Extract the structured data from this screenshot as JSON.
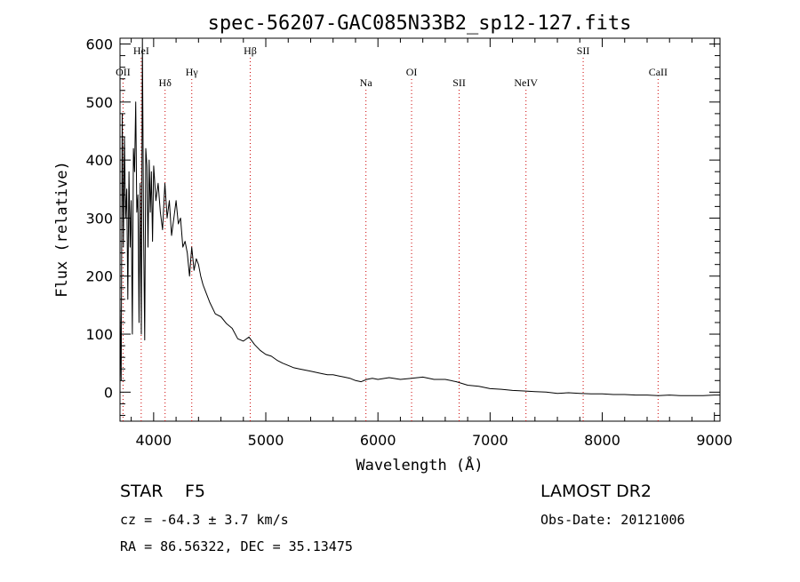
{
  "chart_data": {
    "type": "line",
    "title": "spec-56207-GAC085N33B2_sp12-127.fits",
    "xlabel": "Wavelength (Å)",
    "ylabel": "Flux (relative)",
    "xlim": [
      3700,
      9050
    ],
    "ylim": [
      -50,
      610
    ],
    "x_ticks": [
      4000,
      5000,
      6000,
      7000,
      8000,
      9000
    ],
    "y_ticks": [
      0,
      100,
      200,
      300,
      400,
      500,
      600
    ],
    "x_tick_labels": [
      "4000",
      "5000",
      "6000",
      "7000",
      "8000",
      "9000"
    ],
    "y_tick_labels": [
      "0",
      "100",
      "200",
      "300",
      "400",
      "500",
      "600"
    ],
    "grid": false,
    "series": [
      {
        "x": [
          3700,
          3710,
          3720,
          3730,
          3740,
          3750,
          3760,
          3770,
          3780,
          3790,
          3800,
          3810,
          3820,
          3830,
          3840,
          3850,
          3860,
          3870,
          3880,
          3890,
          3900,
          3910,
          3920,
          3930,
          3940,
          3950,
          3960,
          3970,
          3980,
          3990,
          4000,
          4020,
          4040,
          4060,
          4080,
          4100,
          4120,
          4140,
          4160,
          4180,
          4200,
          4220,
          4240,
          4260,
          4280,
          4300,
          4320,
          4340,
          4360,
          4380,
          4400,
          4420,
          4440,
          4460,
          4480,
          4500,
          4550,
          4600,
          4650,
          4700,
          4750,
          4800,
          4850,
          4900,
          4950,
          5000,
          5050,
          5100,
          5150,
          5200,
          5250,
          5300,
          5350,
          5400,
          5450,
          5500,
          5550,
          5600,
          5650,
          5700,
          5750,
          5800,
          5850,
          5900,
          5950,
          6000,
          6100,
          6200,
          6300,
          6400,
          6500,
          6600,
          6700,
          6800,
          6900,
          7000,
          7100,
          7200,
          7300,
          7400,
          7500,
          7600,
          7700,
          7800,
          7900,
          8000,
          8100,
          8200,
          8300,
          8400,
          8500,
          8600,
          8700,
          8800,
          8900,
          9000,
          9050
        ],
        "y": [
          150,
          20,
          480,
          250,
          440,
          300,
          350,
          160,
          380,
          250,
          330,
          100,
          420,
          380,
          500,
          310,
          340,
          120,
          360,
          100,
          610,
          280,
          90,
          420,
          390,
          250,
          400,
          310,
          380,
          260,
          390,
          330,
          360,
          310,
          280,
          360,
          300,
          330,
          270,
          300,
          330,
          290,
          300,
          250,
          260,
          240,
          200,
          250,
          210,
          230,
          220,
          200,
          185,
          175,
          165,
          155,
          135,
          130,
          118,
          110,
          92,
          88,
          95,
          82,
          72,
          65,
          62,
          55,
          50,
          46,
          42,
          40,
          38,
          36,
          34,
          32,
          30,
          30,
          28,
          26,
          24,
          20,
          18,
          22,
          24,
          22,
          25,
          22,
          24,
          26,
          22,
          22,
          18,
          12,
          10,
          6,
          5,
          3,
          2,
          1,
          0,
          -2,
          -1,
          -2,
          -3,
          -3,
          -4,
          -4,
          -5,
          -5,
          -6,
          -5,
          -6,
          -6,
          -6,
          -5,
          -5
        ]
      }
    ],
    "line_markers": [
      {
        "label": "OII",
        "x": 3727,
        "tier": 3
      },
      {
        "label": "HeI",
        "x": 3889,
        "tier": 1
      },
      {
        "label": "Hδ",
        "x": 4102,
        "tier": 4
      },
      {
        "label": "Hγ",
        "x": 4340,
        "tier": 3
      },
      {
        "label": "Hβ",
        "x": 4861,
        "tier": 1
      },
      {
        "label": "Na",
        "x": 5893,
        "tier": 4
      },
      {
        "label": "OI",
        "x": 6300,
        "tier": 3
      },
      {
        "label": "SII",
        "x": 6724,
        "tier": 4
      },
      {
        "label": "NeIV",
        "x": 7320,
        "tier": 4
      },
      {
        "label": "SII",
        "x": 7830,
        "tier": 1
      },
      {
        "label": "CaII",
        "x": 8498,
        "tier": 3
      }
    ],
    "marker_color": "#cc0000"
  },
  "info": {
    "object_class": "STAR",
    "subclass": "F5",
    "survey": "LAMOST DR2",
    "cz": "cz = -64.3 ± 3.7 km/s",
    "obs_date": "Obs-Date: 20121006",
    "coords": "RA =  86.56322, DEC =  35.13475"
  }
}
